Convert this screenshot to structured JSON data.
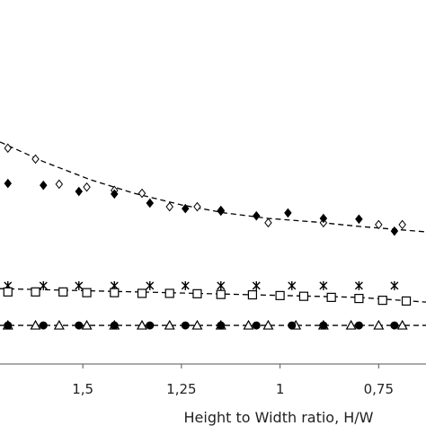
{
  "chart_data": {
    "type": "scatter",
    "xlabel": "Height to Width ratio, H/W",
    "xlim": [
      1.71,
      0.63
    ],
    "xticks": [
      {
        "value": 1.5,
        "label": "1,5"
      },
      {
        "value": 1.25,
        "label": "1,25"
      },
      {
        "value": 1,
        "label": "1"
      },
      {
        "value": 0.75,
        "label": "0,75"
      }
    ],
    "ylim": [
      0,
      100
    ],
    "series": [
      {
        "marker": "diamond-open",
        "color": "#000000",
        "x": [
          1.69,
          1.62,
          1.56,
          1.49,
          1.42,
          1.35,
          1.28,
          1.21,
          1.15,
          1.03,
          0.89,
          0.75,
          0.69
        ],
        "values": [
          59.3,
          56.3,
          49.4,
          48.6,
          47.7,
          46.9,
          43.2,
          43.2,
          42,
          38.8,
          38.8,
          38.3,
          38.3
        ]
      },
      {
        "marker": "diamond-filled",
        "color": "#000000",
        "x": [
          1.69,
          1.6,
          1.51,
          1.42,
          1.33,
          1.24,
          1.15,
          1.06,
          0.98,
          0.89,
          0.8,
          0.71
        ],
        "values": [
          49.6,
          49.1,
          47.4,
          46.7,
          44.2,
          42.7,
          42.2,
          40.7,
          41.5,
          40,
          39.8,
          36.5
        ]
      },
      {
        "marker": "star",
        "color": "#000000",
        "x": [
          1.69,
          1.6,
          1.51,
          1.42,
          1.33,
          1.24,
          1.15,
          1.06,
          0.97,
          0.89,
          0.8,
          0.71
        ],
        "values": [
          21.5,
          21.5,
          21.5,
          21.5,
          21.5,
          21.5,
          21.5,
          21.5,
          21.5,
          21.5,
          21.5,
          21.5
        ]
      },
      {
        "marker": "square-open",
        "color": "#000000",
        "x": [
          1.69,
          1.62,
          1.55,
          1.49,
          1.42,
          1.35,
          1.28,
          1.21,
          1.15,
          1.07,
          1,
          0.94,
          0.87,
          0.8,
          0.74,
          0.68
        ],
        "values": [
          19.8,
          19.8,
          19.8,
          19.6,
          19.6,
          19.4,
          19.4,
          19.3,
          19.1,
          19,
          18.8,
          18.6,
          18.3,
          18,
          17.5,
          17.3
        ]
      },
      {
        "marker": "triangle-open",
        "color": "#000000",
        "x": [
          1.69,
          1.62,
          1.56,
          1.49,
          1.42,
          1.35,
          1.28,
          1.21,
          1.15,
          1.08,
          1.03,
          0.96,
          0.89,
          0.82,
          0.75,
          0.69
        ],
        "values": [
          10.6,
          10.6,
          10.6,
          10.6,
          10.6,
          10.6,
          10.6,
          10.6,
          10.6,
          10.6,
          10.6,
          10.6,
          10.6,
          10.6,
          10.6,
          10.6
        ]
      },
      {
        "marker": "circle-filled",
        "color": "#000000",
        "x": [
          1.69,
          1.6,
          1.51,
          1.42,
          1.33,
          1.24,
          1.15,
          1.06,
          0.97,
          0.89,
          0.8,
          0.71
        ],
        "values": [
          10.6,
          10.6,
          10.6,
          10.6,
          10.6,
          10.6,
          10.6,
          10.6,
          10.6,
          10.6,
          10.6,
          10.6
        ]
      },
      {
        "line": "dashed",
        "color": "#000000",
        "x": [
          1.71,
          1.6,
          1.48,
          1.37,
          1.25,
          1.14,
          1.03,
          0.91,
          0.8,
          0.63
        ],
        "values": [
          61,
          55.6,
          50.6,
          46.9,
          43.7,
          41.5,
          40,
          39,
          37.8,
          36.3
        ]
      },
      {
        "line": "dashed",
        "color": "#000000",
        "x": [
          1.71,
          1.25,
          0.8,
          0.63
        ],
        "values": [
          20.7,
          19.5,
          18.3,
          17
        ]
      },
      {
        "line": "dashed",
        "color": "#000000",
        "x": [
          1.71,
          0.63
        ],
        "values": [
          10.6,
          10.6
        ]
      }
    ]
  }
}
